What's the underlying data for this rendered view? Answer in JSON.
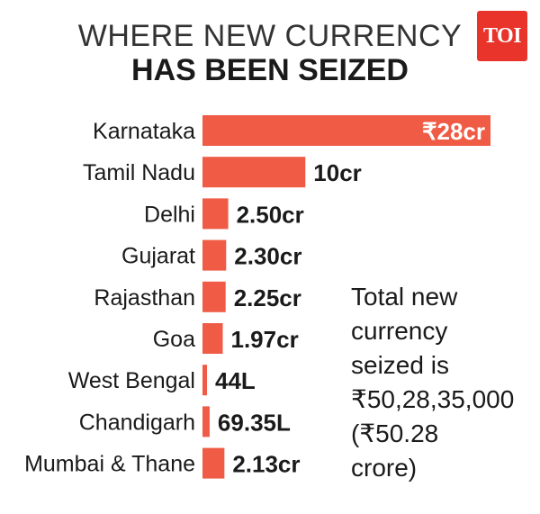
{
  "header": {
    "title_line1": "WHERE NEW CURRENCY",
    "title_line2": "HAS BEEN SEIZED",
    "logo_text": "TOI"
  },
  "colors": {
    "bar": "#ef5b45",
    "logo_bg": "#e8342a"
  },
  "chart_data": {
    "type": "bar",
    "orientation": "horizontal",
    "unit": "crore",
    "categories": [
      "Karnataka",
      "Tamil Nadu",
      "Delhi",
      "Gujarat",
      "Rajasthan",
      "Goa",
      "West Bengal",
      "Chandigarh",
      "Mumbai & Thane"
    ],
    "values": [
      28,
      10,
      2.5,
      2.3,
      2.25,
      1.97,
      0.44,
      0.6935,
      2.13
    ],
    "value_labels": [
      "₹28cr",
      "10cr",
      "2.50cr",
      "2.30cr",
      "2.25cr",
      "1.97cr",
      "44L",
      "69.35L",
      "2.13cr"
    ],
    "title": "",
    "xlabel": "",
    "ylabel": "",
    "grid": false
  },
  "annotation": {
    "lines": [
      "Total new",
      "currency",
      "seized is",
      "₹50,28,35,000",
      "(₹50.28",
      "crore)"
    ]
  }
}
